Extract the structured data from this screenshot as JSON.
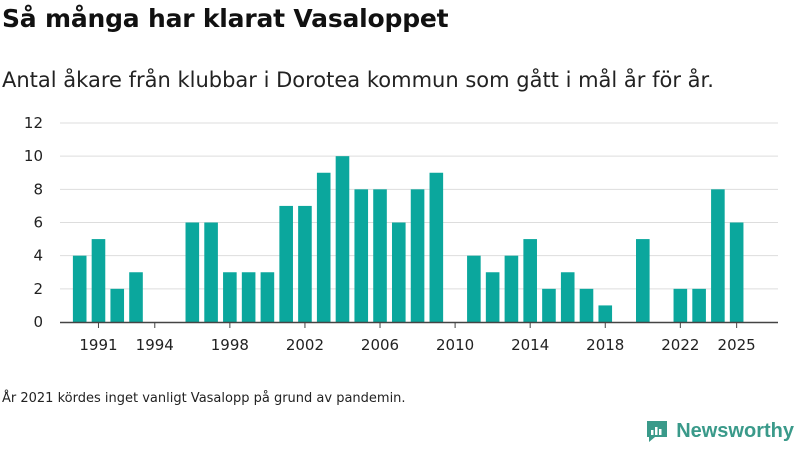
{
  "title": "Så många har klarat Vasaloppet",
  "subtitle": "Antal åkare från klubbar i Dorotea kommun som gått i mål år för år.",
  "footnote": "År 2021 kördes inget vanligt Vasalopp på grund av pandemin.",
  "brand": {
    "name": "Newsworthy",
    "icon": "newsworthy-logo-icon"
  },
  "colors": {
    "bar": "#0ba79d",
    "grid": "#dddddd",
    "axis": "#444444",
    "brand": "#3a9a8a"
  },
  "chart_data": {
    "type": "bar",
    "x": [
      1990,
      1991,
      1992,
      1993,
      1994,
      1995,
      1996,
      1997,
      1998,
      1999,
      2000,
      2001,
      2002,
      2003,
      2004,
      2005,
      2006,
      2007,
      2008,
      2009,
      2010,
      2011,
      2012,
      2013,
      2014,
      2015,
      2016,
      2017,
      2018,
      2019,
      2020,
      2021,
      2022,
      2023,
      2024,
      2025
    ],
    "values": [
      4,
      5,
      2,
      3,
      0,
      0,
      6,
      6,
      3,
      3,
      3,
      7,
      7,
      9,
      10,
      8,
      8,
      6,
      8,
      9,
      0,
      4,
      3,
      4,
      5,
      2,
      3,
      2,
      1,
      0,
      5,
      0,
      2,
      2,
      8,
      6
    ],
    "xtick_labels": [
      "1991",
      "1994",
      "1998",
      "2002",
      "2006",
      "2010",
      "2014",
      "2018",
      "2022",
      "2025"
    ],
    "xtick_values": [
      1991,
      1994,
      1998,
      2002,
      2006,
      2010,
      2014,
      2018,
      2022,
      2025
    ],
    "yticks": [
      0,
      2,
      4,
      6,
      8,
      10,
      12
    ],
    "ylim": [
      0,
      12
    ],
    "grid": true,
    "xlabel": "",
    "ylabel": ""
  }
}
